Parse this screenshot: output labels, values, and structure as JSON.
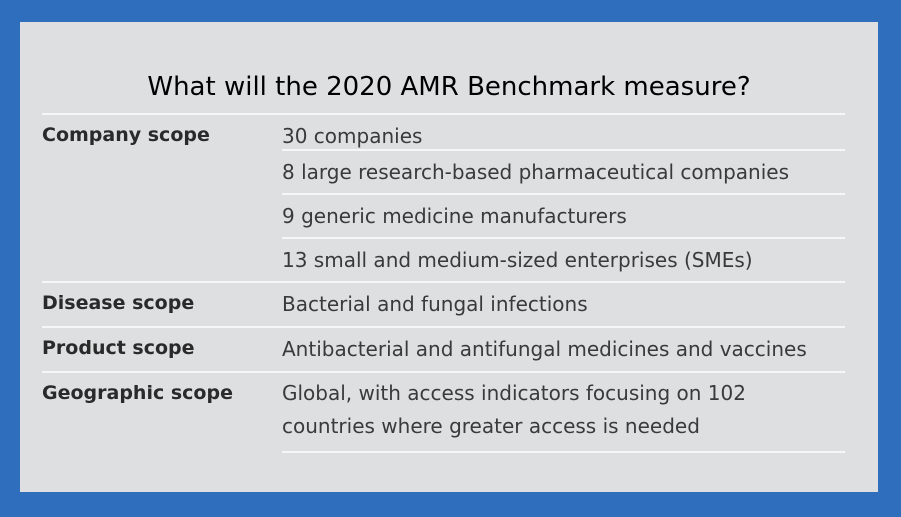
{
  "title": "What will the 2020 AMR Benchmark measure?",
  "sections": [
    {
      "label": "Company scope",
      "values": [
        "30 companies",
        "8 large research-based pharmaceutical companies",
        "9 generic medicine manufacturers",
        "13 small and medium-sized enterprises (SMEs)"
      ]
    },
    {
      "label": "Disease scope",
      "values": [
        "Bacterial and fungal infections"
      ]
    },
    {
      "label": "Product scope",
      "values": [
        "Antibacterial and antifungal medicines and vaccines"
      ]
    },
    {
      "label": "Geographic scope",
      "values": [
        "Global, with access indicators focusing on 102 countries where greater access is needed"
      ]
    }
  ]
}
